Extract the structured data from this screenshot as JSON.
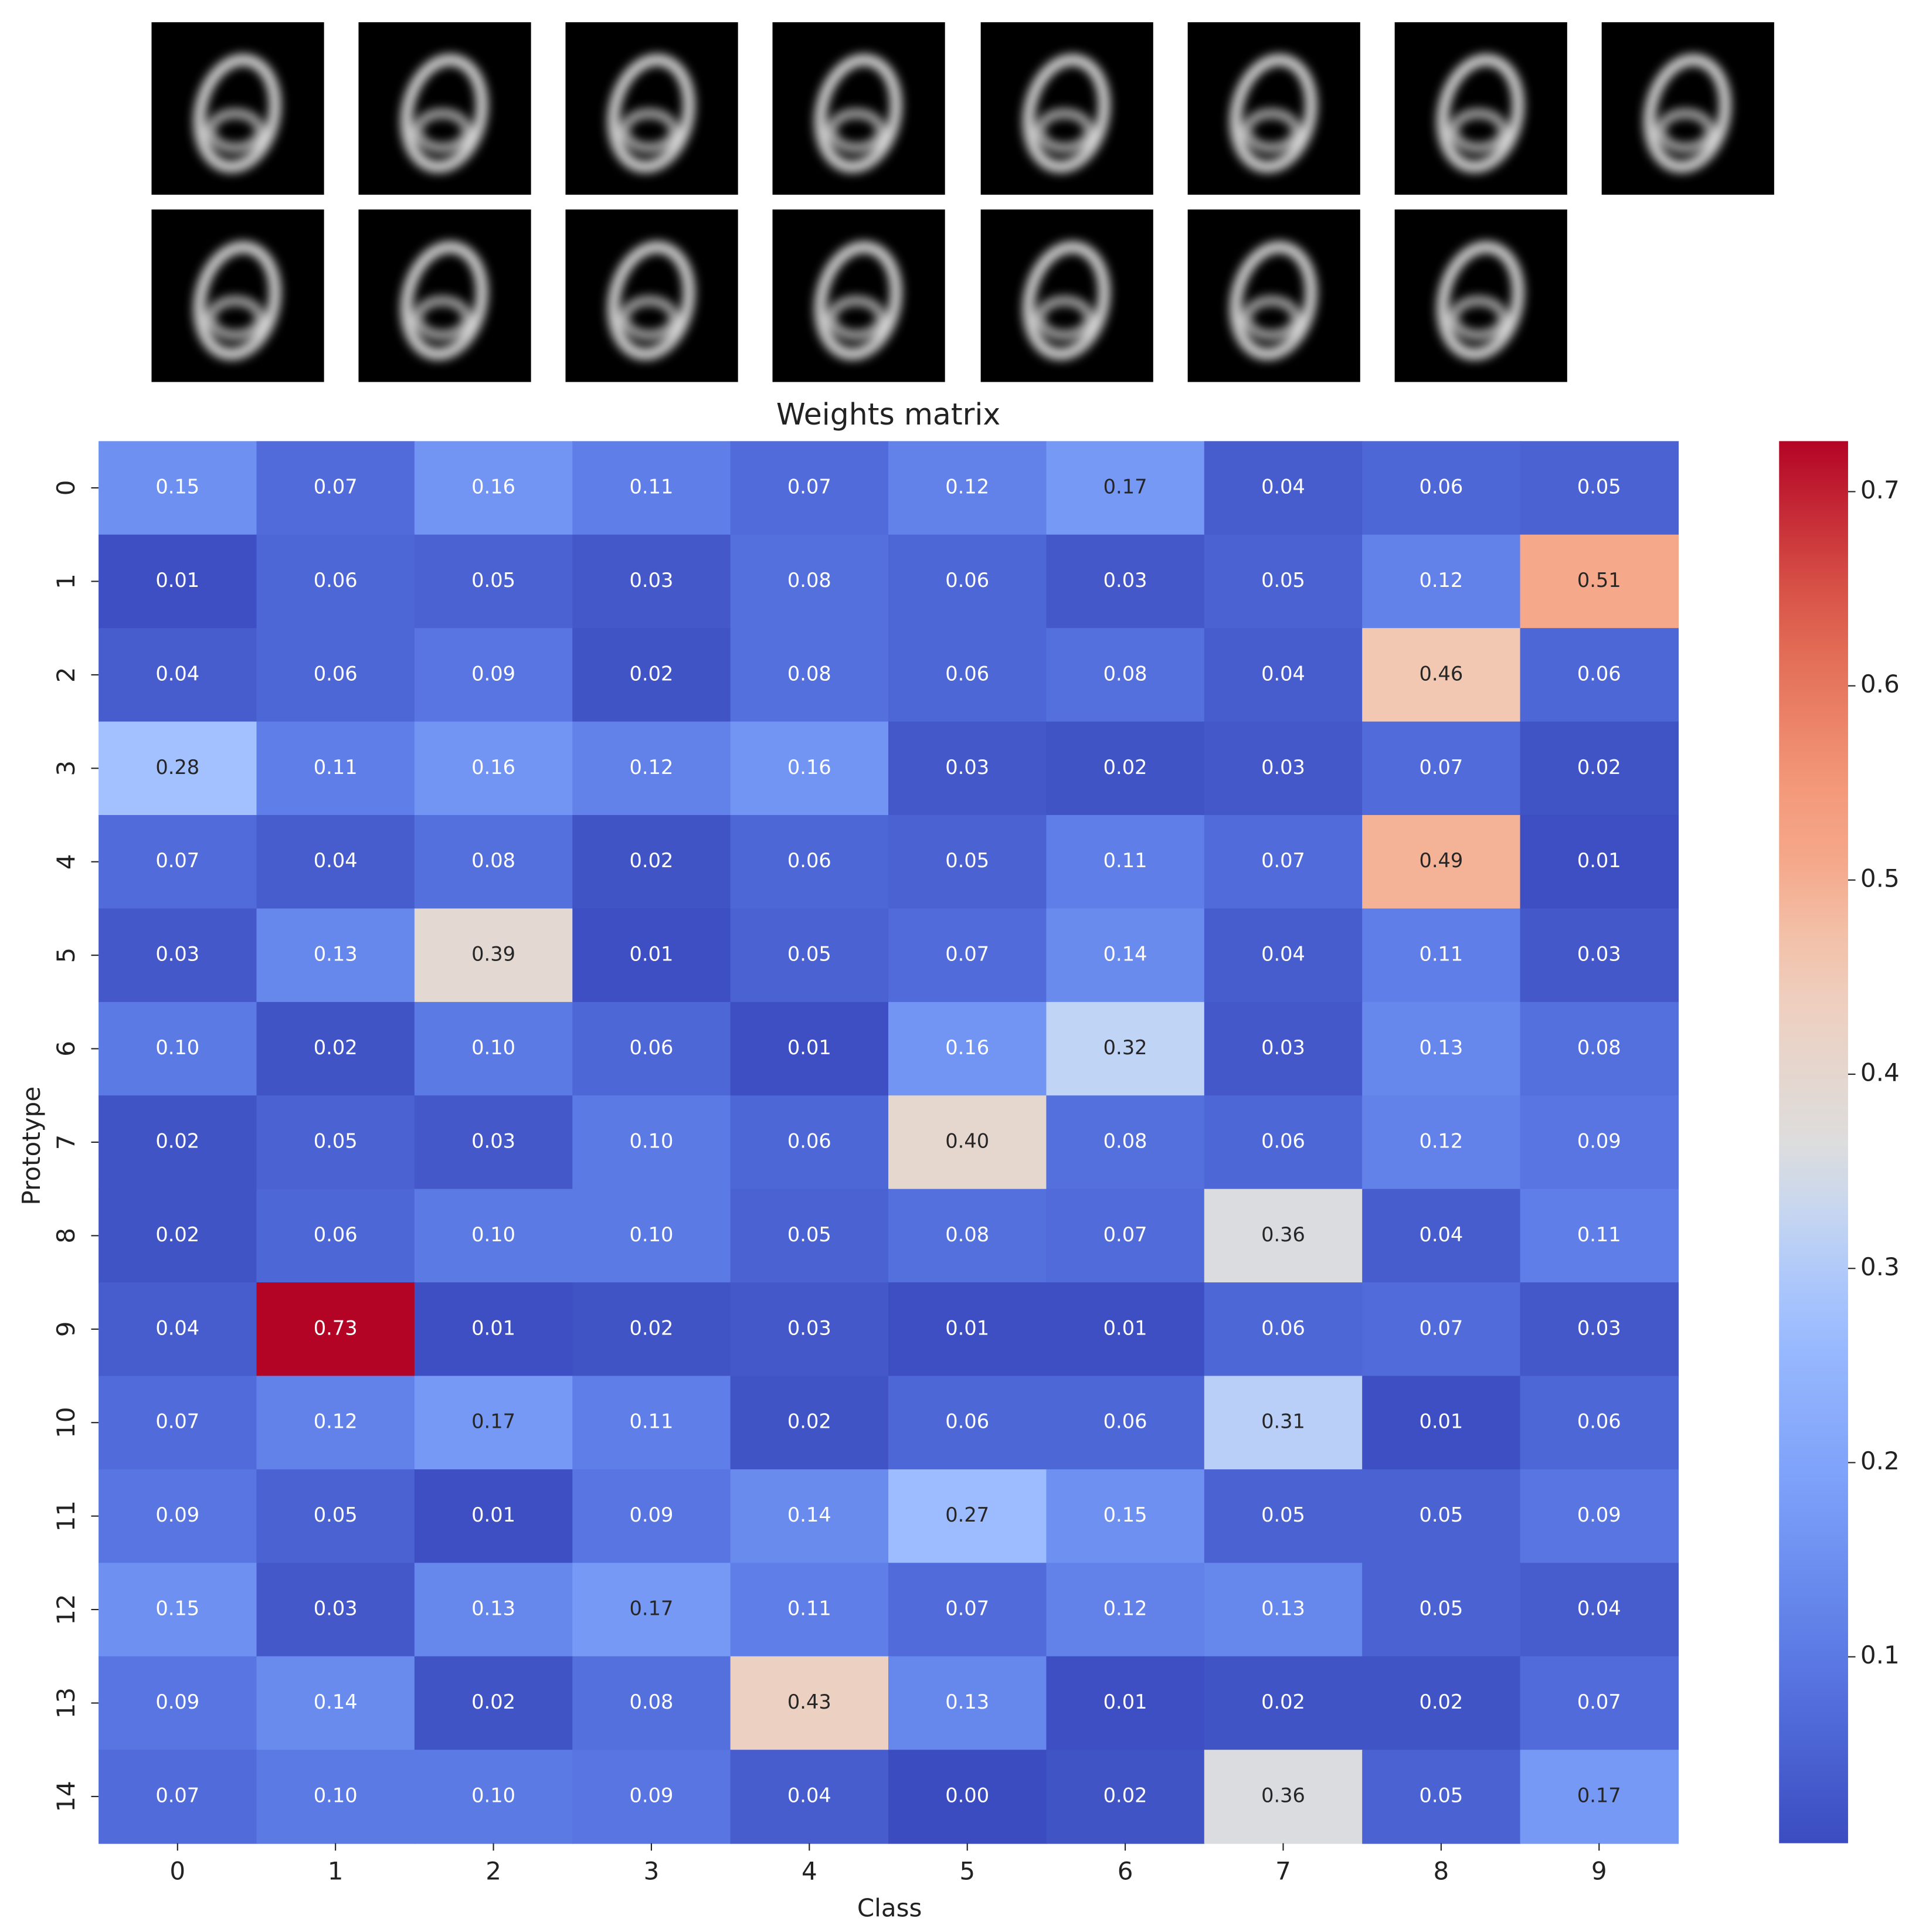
{
  "chart_data": {
    "type": "heatmap",
    "title": "Weights matrix",
    "xlabel": "Class",
    "ylabel": "Prototype",
    "x_categories": [
      "0",
      "1",
      "2",
      "3",
      "4",
      "5",
      "6",
      "7",
      "8",
      "9"
    ],
    "y_categories": [
      "0",
      "1",
      "2",
      "3",
      "4",
      "5",
      "6",
      "7",
      "8",
      "9",
      "10",
      "11",
      "12",
      "13",
      "14"
    ],
    "values": [
      [
        0.15,
        0.07,
        0.16,
        0.11,
        0.07,
        0.12,
        0.17,
        0.04,
        0.06,
        0.05
      ],
      [
        0.01,
        0.06,
        0.05,
        0.03,
        0.08,
        0.06,
        0.03,
        0.05,
        0.12,
        0.51
      ],
      [
        0.04,
        0.06,
        0.09,
        0.02,
        0.08,
        0.06,
        0.08,
        0.04,
        0.46,
        0.06
      ],
      [
        0.28,
        0.11,
        0.16,
        0.12,
        0.16,
        0.03,
        0.02,
        0.03,
        0.07,
        0.02
      ],
      [
        0.07,
        0.04,
        0.08,
        0.02,
        0.06,
        0.05,
        0.11,
        0.07,
        0.49,
        0.01
      ],
      [
        0.03,
        0.13,
        0.39,
        0.01,
        0.05,
        0.07,
        0.14,
        0.04,
        0.11,
        0.03
      ],
      [
        0.1,
        0.02,
        0.1,
        0.06,
        0.01,
        0.16,
        0.32,
        0.03,
        0.13,
        0.08
      ],
      [
        0.02,
        0.05,
        0.03,
        0.1,
        0.06,
        0.4,
        0.08,
        0.06,
        0.12,
        0.09
      ],
      [
        0.02,
        0.06,
        0.1,
        0.1,
        0.05,
        0.08,
        0.07,
        0.36,
        0.04,
        0.11
      ],
      [
        0.04,
        0.73,
        0.01,
        0.02,
        0.03,
        0.01,
        0.01,
        0.06,
        0.07,
        0.03
      ],
      [
        0.07,
        0.12,
        0.17,
        0.11,
        0.02,
        0.06,
        0.06,
        0.31,
        0.01,
        0.06
      ],
      [
        0.09,
        0.05,
        0.01,
        0.09,
        0.14,
        0.27,
        0.15,
        0.05,
        0.05,
        0.09
      ],
      [
        0.15,
        0.03,
        0.13,
        0.17,
        0.11,
        0.07,
        0.12,
        0.13,
        0.05,
        0.04
      ],
      [
        0.09,
        0.14,
        0.02,
        0.08,
        0.43,
        0.13,
        0.01,
        0.02,
        0.02,
        0.07
      ],
      [
        0.07,
        0.1,
        0.1,
        0.09,
        0.04,
        0,
        0.02,
        0.36,
        0.05,
        0.17
      ]
    ],
    "value_labels": [
      [
        "0.15",
        "0.07",
        "0.16",
        "0.11",
        "0.07",
        "0.12",
        "0.17",
        "0.04",
        "0.06",
        "0.05"
      ],
      [
        "0.01",
        "0.06",
        "0.05",
        "0.03",
        "0.08",
        "0.06",
        "0.03",
        "0.05",
        "0.12",
        "0.51"
      ],
      [
        "0.04",
        "0.06",
        "0.09",
        "0.02",
        "0.08",
        "0.06",
        "0.08",
        "0.04",
        "0.46",
        "0.06"
      ],
      [
        "0.28",
        "0.11",
        "0.16",
        "0.12",
        "0.16",
        "0.03",
        "0.02",
        "0.03",
        "0.07",
        "0.02"
      ],
      [
        "0.07",
        "0.04",
        "0.08",
        "0.02",
        "0.06",
        "0.05",
        "0.11",
        "0.07",
        "0.49",
        "0.01"
      ],
      [
        "0.03",
        "0.13",
        "0.39",
        "0.01",
        "0.05",
        "0.07",
        "0.14",
        "0.04",
        "0.11",
        "0.03"
      ],
      [
        "0.10",
        "0.02",
        "0.10",
        "0.06",
        "0.01",
        "0.16",
        "0.32",
        "0.03",
        "0.13",
        "0.08"
      ],
      [
        "0.02",
        "0.05",
        "0.03",
        "0.10",
        "0.06",
        "0.40",
        "0.08",
        "0.06",
        "0.12",
        "0.09"
      ],
      [
        "0.02",
        "0.06",
        "0.10",
        "0.10",
        "0.05",
        "0.08",
        "0.07",
        "0.36",
        "0.04",
        "0.11"
      ],
      [
        "0.04",
        "0.73",
        "0.01",
        "0.02",
        "0.03",
        "0.01",
        "0.01",
        "0.06",
        "0.07",
        "0.03"
      ],
      [
        "0.07",
        "0.12",
        "0.17",
        "0.11",
        "0.02",
        "0.06",
        "0.06",
        "0.31",
        "0.01",
        "0.06"
      ],
      [
        "0.09",
        "0.05",
        "0.01",
        "0.09",
        "0.14",
        "0.27",
        "0.15",
        "0.05",
        "0.05",
        "0.09"
      ],
      [
        "0.15",
        "0.03",
        "0.13",
        "0.17",
        "0.11",
        "0.07",
        "0.12",
        "0.13",
        "0.05",
        "0.04"
      ],
      [
        "0.09",
        "0.14",
        "0.02",
        "0.08",
        "0.43",
        "0.13",
        "0.01",
        "0.02",
        "0.02",
        "0.07"
      ],
      [
        "0.07",
        "0.10",
        "0.10",
        "0.09",
        "0.04",
        "0.00",
        "0.02",
        "0.36",
        "0.05",
        "0.17"
      ]
    ],
    "colormap": "coolwarm",
    "zlim": [
      0.004,
      0.726
    ],
    "zticks": [
      0.1,
      0.2,
      0.3,
      0.4,
      0.5,
      0.6,
      0.7
    ]
  }
}
